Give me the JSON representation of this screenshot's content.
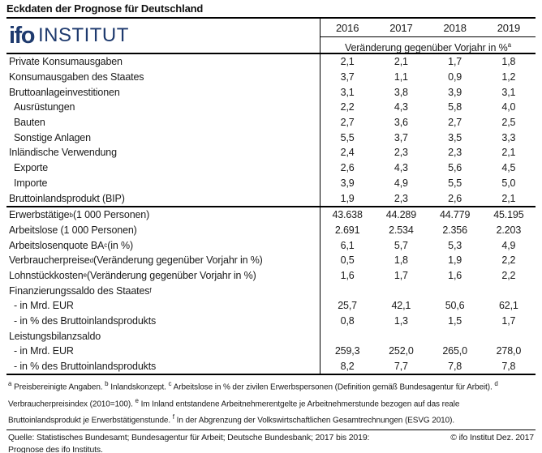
{
  "page_title": "Eckdaten der Prognose für Deutschland",
  "logo": {
    "wordmark": "ifo",
    "institut": "INSTITUT",
    "color": "#1e3a6e"
  },
  "header": {
    "years": [
      "2016",
      "2017",
      "2018",
      "2019"
    ],
    "subheader": "Veränderung gegenüber Vorjahr in %",
    "subheader_sup": "a"
  },
  "table": {
    "sections": [
      {
        "rows": [
          {
            "label": "Private Konsumausgaben",
            "indent": 0,
            "values": [
              "2,1",
              "2,1",
              "1,7",
              "1,8"
            ]
          },
          {
            "label": "Konsumausgaben des Staates",
            "indent": 0,
            "values": [
              "3,7",
              "1,1",
              "0,9",
              "1,2"
            ]
          },
          {
            "label": "Bruttoanlageinvestitionen",
            "indent": 0,
            "values": [
              "3,1",
              "3,8",
              "3,9",
              "3,1"
            ]
          },
          {
            "label": "Ausrüstungen",
            "indent": 1,
            "values": [
              "2,2",
              "4,3",
              "5,8",
              "4,0"
            ]
          },
          {
            "label": "Bauten",
            "indent": 1,
            "values": [
              "2,7",
              "3,6",
              "2,7",
              "2,5"
            ]
          },
          {
            "label": "Sonstige Anlagen",
            "indent": 1,
            "values": [
              "5,5",
              "3,7",
              "3,5",
              "3,3"
            ]
          },
          {
            "label": "Inländische Verwendung",
            "indent": 0,
            "values": [
              "2,4",
              "2,3",
              "2,3",
              "2,1"
            ]
          },
          {
            "label": "Exporte",
            "indent": 1,
            "values": [
              "2,6",
              "4,3",
              "5,6",
              "4,5"
            ]
          },
          {
            "label": "Importe",
            "indent": 1,
            "values": [
              "3,9",
              "4,9",
              "5,5",
              "5,0"
            ]
          },
          {
            "label": "Bruttoinlandsprodukt (BIP)",
            "indent": 0,
            "values": [
              "1,9",
              "2,3",
              "2,6",
              "2,1"
            ]
          }
        ]
      },
      {
        "rows": [
          {
            "label": "Erwerbstätige",
            "sup": "b",
            "suffix": " (1 000 Personen)",
            "indent": 0,
            "values": [
              "43.638",
              "44.289",
              "44.779",
              "45.195"
            ]
          },
          {
            "label": "Arbeitslose (1 000 Personen)",
            "indent": 0,
            "values": [
              "2.691",
              "2.534",
              "2.356",
              "2.203"
            ]
          },
          {
            "label": "Arbeitslosenquote BA",
            "sup": "c",
            "suffix": " (in %)",
            "indent": 0,
            "values": [
              "6,1",
              "5,7",
              "5,3",
              "4,9"
            ]
          },
          {
            "label": "Verbraucherpreise",
            "sup": "d",
            "suffix": " (Veränderung gegenüber Vorjahr in %)",
            "indent": 0,
            "values": [
              "0,5",
              "1,8",
              "1,9",
              "2,2"
            ]
          },
          {
            "label": "Lohnstückkosten",
            "sup": "e",
            "suffix": " (Veränderung gegenüber Vorjahr in %)",
            "indent": 0,
            "values": [
              "1,6",
              "1,7",
              "1,6",
              "2,2"
            ]
          },
          {
            "label": "Finanzierungssaldo des Staates",
            "sup": "f",
            "indent": 0,
            "values": [
              "",
              "",
              "",
              ""
            ]
          },
          {
            "label": "- in Mrd. EUR",
            "indent": 1,
            "values": [
              "25,7",
              "42,1",
              "50,6",
              "62,1"
            ]
          },
          {
            "label": "- in % des Bruttoinlandsprodukts",
            "indent": 1,
            "values": [
              "0,8",
              "1,3",
              "1,5",
              "1,7"
            ]
          },
          {
            "label": "Leistungsbilanzsaldo",
            "indent": 0,
            "values": [
              "",
              "",
              "",
              ""
            ]
          },
          {
            "label": "- in Mrd. EUR",
            "indent": 1,
            "values": [
              "259,3",
              "252,0",
              "265,0",
              "278,0"
            ]
          },
          {
            "label": "- in % des Bruttoinlandsprodukts",
            "indent": 1,
            "values": [
              "8,2",
              "7,7",
              "7,8",
              "7,8"
            ]
          }
        ]
      }
    ]
  },
  "footnotes": [
    {
      "sup": "a",
      "text": " Preisbereinigte Angaben. "
    },
    {
      "sup": "b",
      "text": " Inlandskonzept. "
    },
    {
      "sup": "c",
      "text": " Arbeitslose in % der zivilen Erwerbspersonen (Definition gemäß Bundesagentur für Arbeit). "
    },
    {
      "sup": "d",
      "text": " Verbraucherpreisindex (2010=100). "
    },
    {
      "sup": "e",
      "text": " Im Inland entstandene Arbeitnehmerentgelte je Arbeitnehmerstunde bezogen auf das reale Bruttoinlandsprodukt je Erwerbstätigenstunde. "
    },
    {
      "sup": "f",
      "text": " In der Abgrenzung der Volkswirtschaftlichen Gesamtrechnungen (ESVG 2010)."
    }
  ],
  "footer": {
    "source": "Quelle: Statistisches Bundesamt; Bundesagentur für Arbeit; Deutsche Bundesbank; 2017 bis 2019: Prognose des ifo Instituts.",
    "copyright": "© ifo Institut Dez. 2017"
  }
}
